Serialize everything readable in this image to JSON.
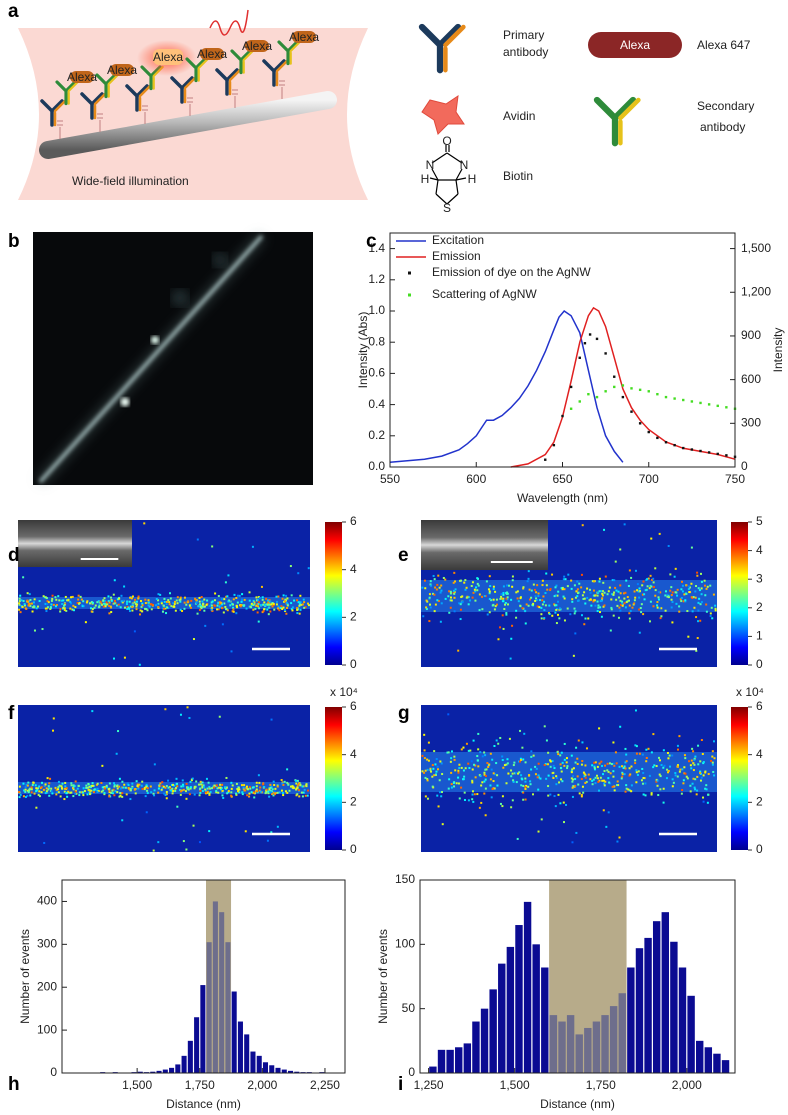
{
  "panel_labels": [
    "a",
    "b",
    "c",
    "d",
    "e",
    "f",
    "g",
    "h",
    "i"
  ],
  "diagram_a": {
    "tag": "Alexa",
    "illumination": "Wide-field illumination",
    "legend": {
      "primary_antibody": [
        "Primary",
        "antibody"
      ],
      "alexa": "Alexa 647",
      "avidin": "Avidin",
      "secondary_antibody": [
        "Secondary",
        "antibody"
      ],
      "biotin": "Biotin"
    },
    "biotin_atoms": [
      "O",
      "N",
      "N",
      "H",
      "H",
      "S"
    ]
  },
  "colorbars": [
    {
      "panel": "d",
      "lim": [
        0,
        6
      ],
      "ticks": [
        0,
        2,
        4,
        6
      ]
    },
    {
      "panel": "e",
      "lim": [
        0,
        5
      ],
      "ticks": [
        0,
        1,
        2,
        3,
        4,
        5
      ]
    },
    {
      "panel": "f",
      "lim": [
        0,
        6
      ],
      "ticks": [
        0,
        2,
        4,
        6
      ],
      "scale_label": "x 10⁴"
    },
    {
      "panel": "g",
      "lim": [
        0,
        6
      ],
      "ticks": [
        0,
        2,
        4,
        6
      ],
      "scale_label": "x 10⁴"
    }
  ],
  "chart_data": [
    {
      "type": "line",
      "x_label": "Wavelength (nm)",
      "y_label": "Intensity (Abs)",
      "y2_label": "Intensity",
      "xlim": [
        550,
        750
      ],
      "xticks": [
        550,
        600,
        650,
        700,
        750
      ],
      "ylim": [
        0,
        1.5
      ],
      "yticks": [
        {
          "value": 0,
          "label": "0.0"
        },
        0.2,
        0.4,
        0.6,
        0.8,
        {
          "value": 1,
          "label": "1.0"
        },
        1.2,
        1.4
      ],
      "y2lim": [
        0,
        1607
      ],
      "y2ticks": [
        0,
        300,
        600,
        900,
        {
          "value": 1200,
          "label": "1,200"
        },
        {
          "value": 1500,
          "label": "1,500"
        }
      ],
      "legend": "upper left",
      "series": [
        {
          "name": "Excitation",
          "color": "#2233cc",
          "mode": "line",
          "x": [
            550,
            560,
            570,
            580,
            590,
            595,
            600,
            603,
            606,
            610,
            615,
            620,
            625,
            630,
            635,
            640,
            645,
            648,
            651,
            655,
            660,
            665,
            670,
            675,
            680,
            685
          ],
          "values": [
            0.03,
            0.04,
            0.05,
            0.07,
            0.11,
            0.15,
            0.2,
            0.25,
            0.3,
            0.3,
            0.33,
            0.38,
            0.44,
            0.52,
            0.62,
            0.74,
            0.88,
            0.96,
            1.0,
            0.97,
            0.86,
            0.62,
            0.38,
            0.2,
            0.1,
            0.03
          ]
        },
        {
          "name": "Emission",
          "color": "#e02020",
          "mode": "line",
          "x": [
            620,
            630,
            640,
            645,
            650,
            655,
            660,
            665,
            668,
            671,
            675,
            680,
            685,
            690,
            695,
            700,
            710,
            720,
            730,
            740,
            750
          ],
          "values": [
            0,
            0.02,
            0.08,
            0.16,
            0.32,
            0.55,
            0.8,
            0.97,
            1.02,
            1.0,
            0.9,
            0.7,
            0.5,
            0.38,
            0.3,
            0.24,
            0.16,
            0.12,
            0.1,
            0.08,
            0.05
          ]
        },
        {
          "name": "Emission of dye on the AgNW",
          "color": "#111111",
          "mode": "markers",
          "axis": "y2",
          "x": [
            640,
            645,
            650,
            655,
            660,
            663,
            666,
            670,
            675,
            680,
            685,
            690,
            695,
            700,
            705,
            710,
            715,
            720,
            725,
            730,
            735,
            740,
            745,
            750
          ],
          "values": [
            50,
            150,
            350,
            550,
            750,
            850,
            910,
            880,
            780,
            620,
            480,
            380,
            300,
            240,
            200,
            170,
            150,
            130,
            120,
            110,
            100,
            90,
            80,
            70
          ]
        },
        {
          "name": "Scattering of AgNW",
          "color": "#44dd22",
          "mode": "markers",
          "axis": "y2",
          "x": [
            655,
            660,
            665,
            670,
            675,
            680,
            685,
            690,
            695,
            700,
            705,
            710,
            715,
            720,
            725,
            730,
            735,
            740,
            745,
            750
          ],
          "values": [
            400,
            450,
            500,
            480,
            520,
            550,
            560,
            540,
            530,
            520,
            500,
            480,
            470,
            460,
            450,
            440,
            430,
            420,
            410,
            400
          ]
        }
      ]
    },
    {
      "type": "histogram",
      "x_label": "Distance (nm)",
      "y_label": "Number of events",
      "xlim": [
        1200,
        2330
      ],
      "xticks": [
        {
          "value": 1500,
          "label": "1,500"
        },
        {
          "value": 1750,
          "label": "1,750"
        },
        {
          "value": 2000,
          "label": "2,000"
        },
        {
          "value": 2250,
          "label": "2,250"
        }
      ],
      "ylim": [
        0,
        450
      ],
      "yticks": [
        0,
        100,
        200,
        300,
        400
      ],
      "color": "#0b0b92",
      "highlight_range": [
        1775,
        1875
      ],
      "highlight_color": "#b7ab8a",
      "highlight_bar_color": "#6e6e8c",
      "bins": [
        1350,
        1375,
        1400,
        1425,
        1450,
        1475,
        1500,
        1525,
        1550,
        1575,
        1600,
        1625,
        1650,
        1675,
        1700,
        1725,
        1750,
        1775,
        1800,
        1825,
        1850,
        1875,
        1900,
        1925,
        1950,
        1975,
        2000,
        2025,
        2050,
        2075,
        2100,
        2125,
        2150,
        2175,
        2200,
        2225,
        2250,
        2275
      ],
      "values": [
        2,
        1,
        2,
        1,
        1,
        2,
        3,
        2,
        3,
        5,
        8,
        12,
        20,
        40,
        75,
        130,
        205,
        305,
        400,
        375,
        305,
        190,
        120,
        90,
        50,
        40,
        25,
        18,
        12,
        8,
        5,
        3,
        2,
        2,
        1,
        2,
        1
      ]
    },
    {
      "type": "histogram",
      "x_label": "Distance (nm)",
      "y_label": "Number of events",
      "xlim": [
        1225,
        2140
      ],
      "xticks": [
        {
          "value": 1250,
          "label": "1,250"
        },
        {
          "value": 1500,
          "label": "1,500"
        },
        {
          "value": 1750,
          "label": "1,750"
        },
        {
          "value": 2000,
          "label": "2,000"
        }
      ],
      "ylim": [
        0,
        150
      ],
      "yticks": [
        0,
        50,
        100,
        150
      ],
      "color": "#0b0b92",
      "highlight_range": [
        1600,
        1825
      ],
      "highlight_color": "#b7ab8a",
      "highlight_bar_color": "#6e6e8c",
      "bins": [
        1250,
        1275,
        1300,
        1325,
        1350,
        1375,
        1400,
        1425,
        1450,
        1475,
        1500,
        1525,
        1550,
        1575,
        1600,
        1625,
        1650,
        1675,
        1700,
        1725,
        1750,
        1775,
        1800,
        1825,
        1850,
        1875,
        1900,
        1925,
        1950,
        1975,
        2000,
        2025,
        2050,
        2075,
        2100,
        2125
      ],
      "values": [
        5,
        18,
        18,
        20,
        23,
        40,
        50,
        65,
        85,
        98,
        115,
        133,
        100,
        82,
        45,
        40,
        45,
        30,
        35,
        40,
        45,
        52,
        62,
        82,
        97,
        105,
        118,
        125,
        102,
        82,
        60,
        25,
        20,
        15,
        10
      ]
    }
  ]
}
